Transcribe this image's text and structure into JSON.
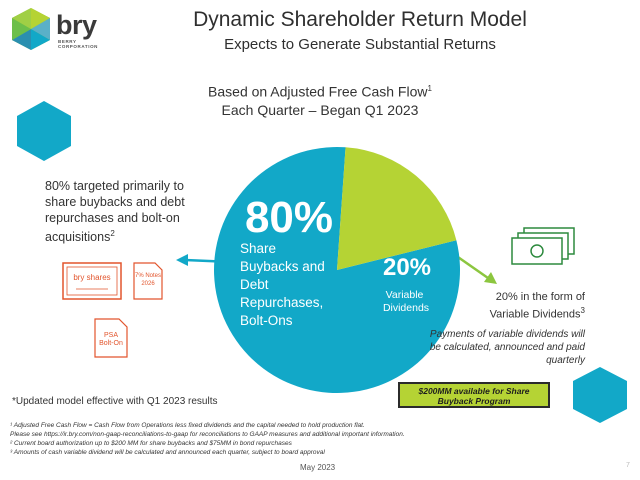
{
  "header": {
    "logo_text": "bry",
    "logo_subtext": "BERRY CORPORATION",
    "title": "Dynamic Shareholder Return Model",
    "subtitle": "Expects to Generate Substantial Returns"
  },
  "basis": {
    "line1": "Based on Adjusted Free Cash Flow",
    "line1_sup": "1",
    "line2": "Each Quarter – Began Q1 2023"
  },
  "left_description": {
    "text": "80% targeted primarily to share buybacks and debt repurchases and bolt-on acquisitions",
    "sup": "2"
  },
  "icons": {
    "certificate_label": "bry shares",
    "notes_label": "7% Notes 2026",
    "psa_label": "PSA Bolt-On"
  },
  "right_description": {
    "text": "20% in the form of Variable Dividends",
    "sup": "3",
    "italic": "Payments of variable dividends will be calculated, announced and paid quarterly"
  },
  "program_box": "$200MM available for Share Buyback Program",
  "updated_note": "*Updated model effective with Q1 2023 results",
  "footnotes": [
    "¹ Adjusted Free Cash Flow = Cash Flow from Operations less fixed dividends and the capital needed to hold production flat.",
    "Please see https://ir.bry.com/non-gaap-reconciliations-to-gaap for reconciliations to GAAP measures and additional important information.",
    "² Current board authorization up to $200 MM for share buybacks and $75MM in bond repurchases",
    "³ Amounts of cash variable dividend will be calculated and announced each quarter, subject to board approval"
  ],
  "date": "May 2023",
  "page_number": "7",
  "colors": {
    "teal": "#12a8c8",
    "lime": "#b5d334",
    "orange_icon": "#e2552d"
  },
  "chart_data": {
    "type": "pie",
    "title": "",
    "slices": [
      {
        "label": "Share Buybacks and Debt Repurchases, Bolt-Ons",
        "percent_label": "80%",
        "value": 80,
        "color": "#12a8c8"
      },
      {
        "label": "Variable Dividends",
        "percent_label": "20%",
        "value": 20,
        "color": "#b5d334"
      }
    ]
  }
}
